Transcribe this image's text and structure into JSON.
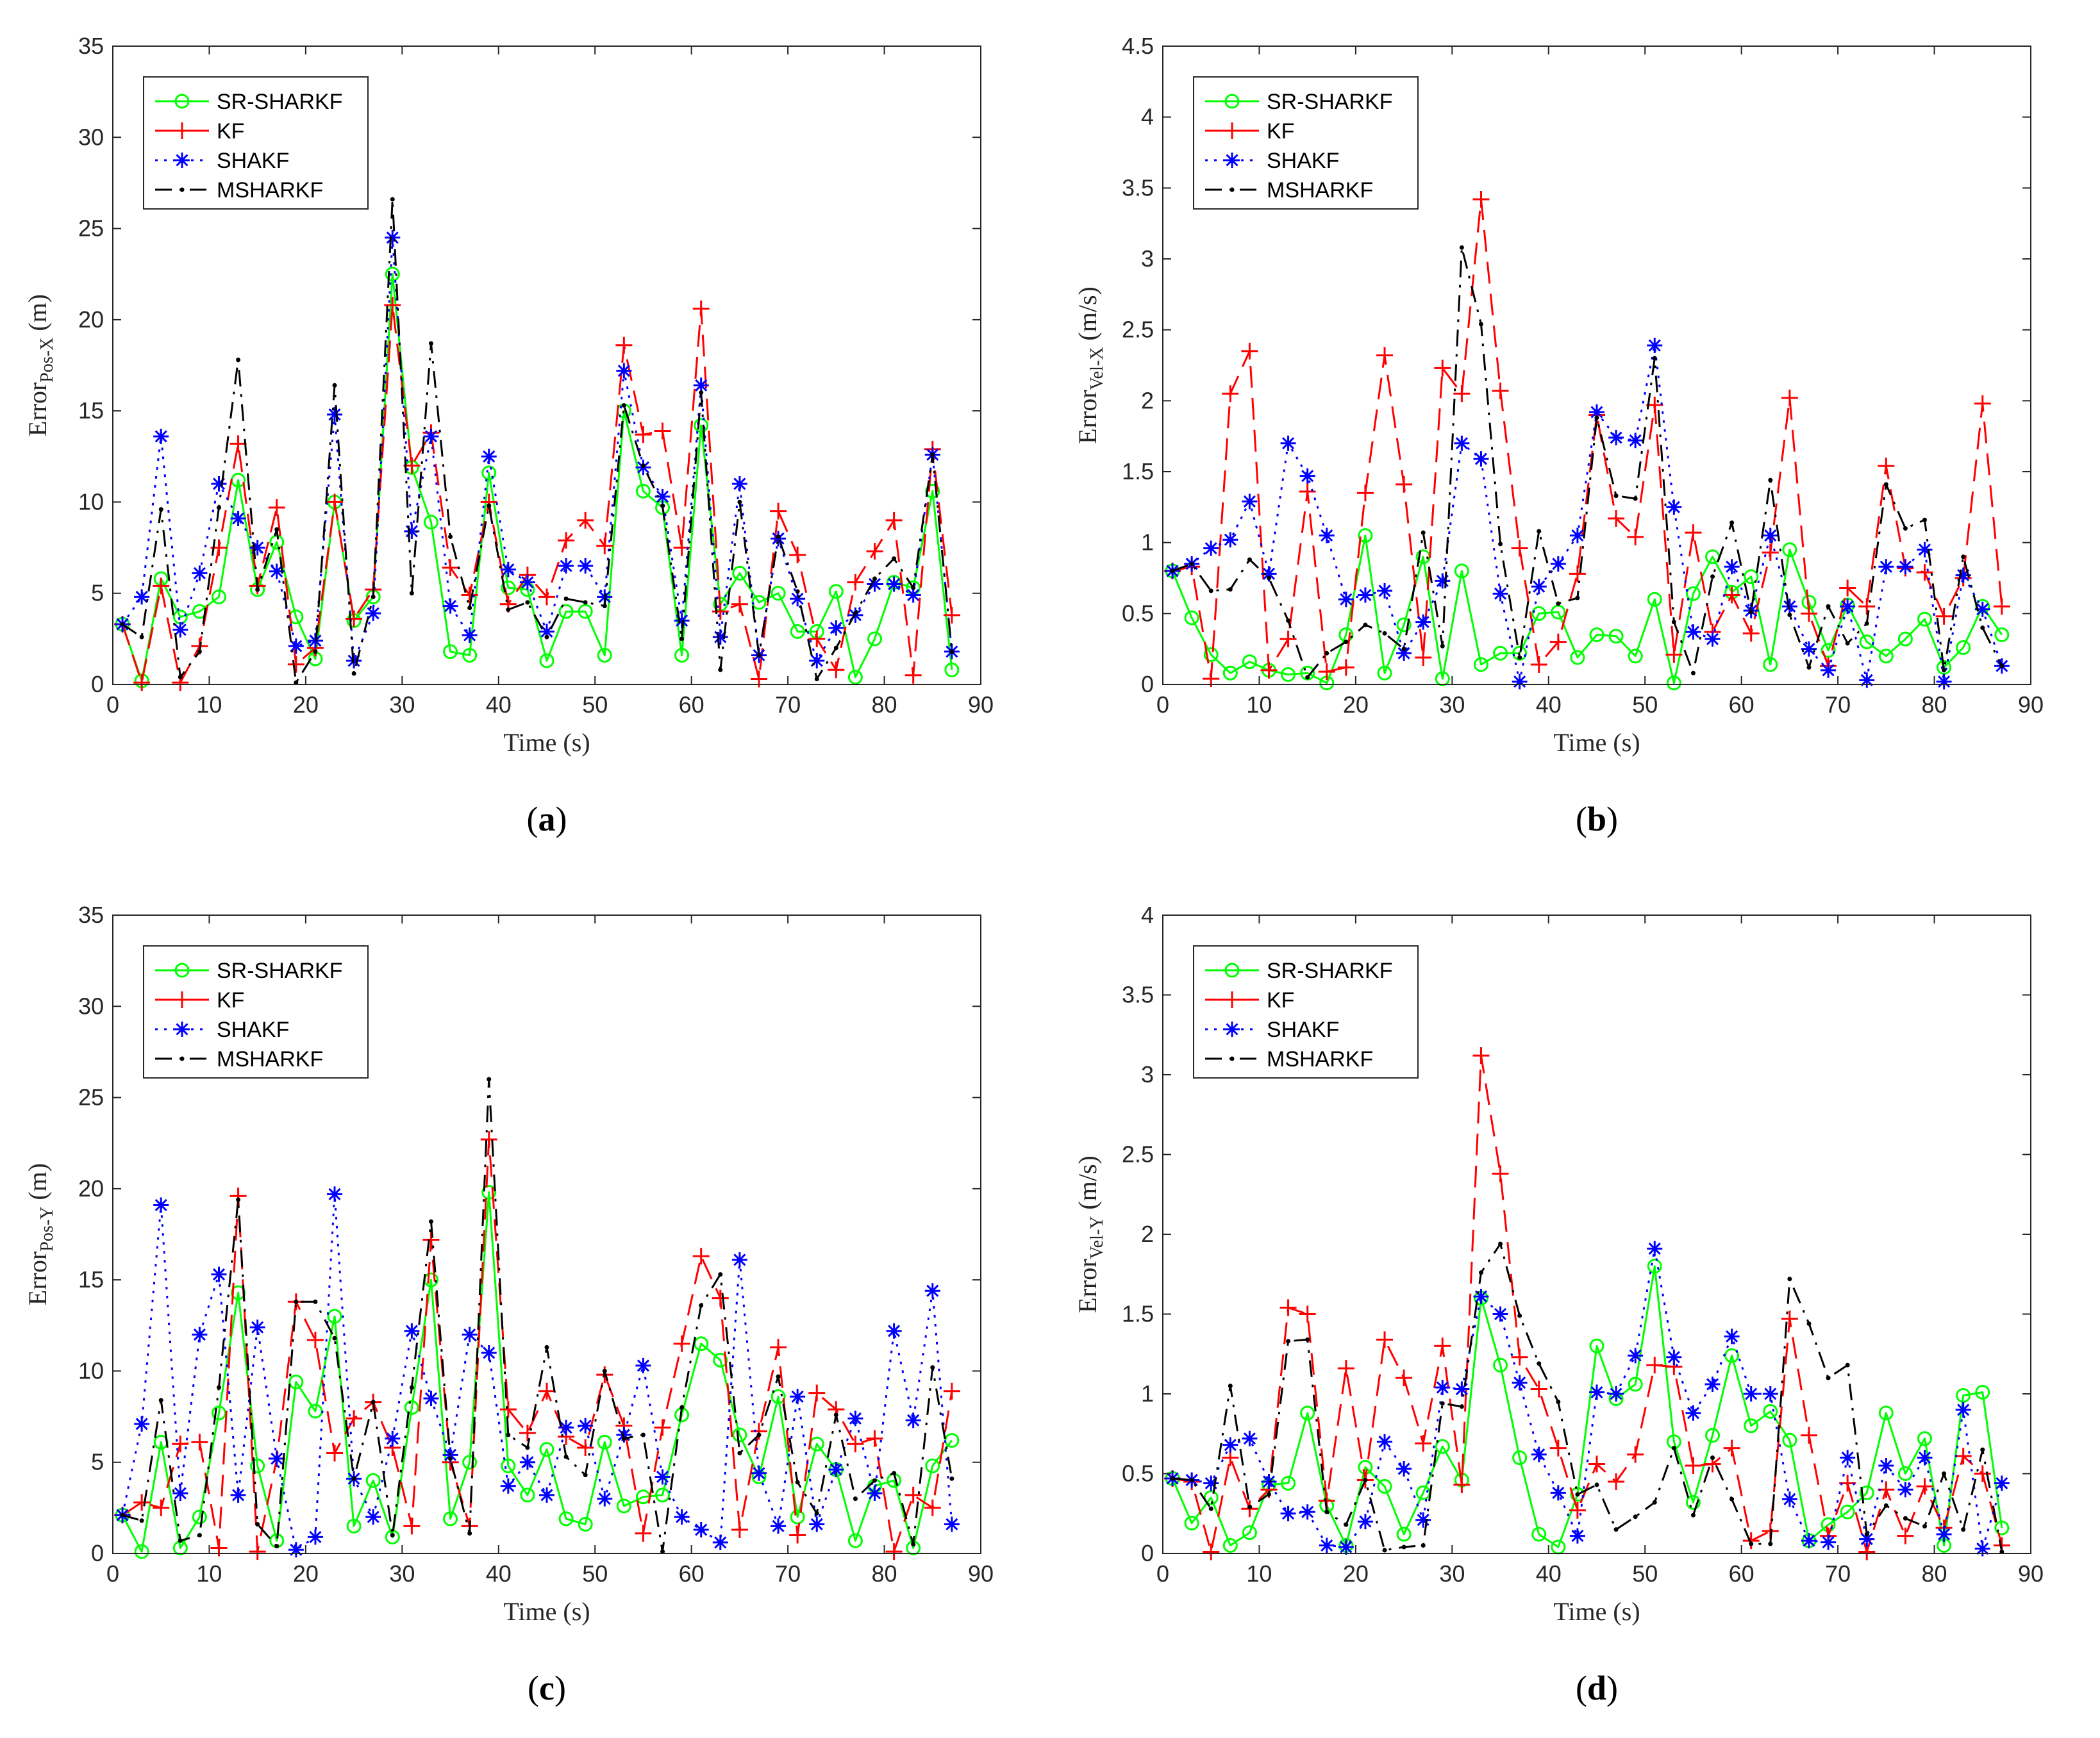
{
  "series_styles": [
    {
      "name": "SR-SHARKF",
      "color": "#00ff00",
      "dash": "",
      "marker": "circle"
    },
    {
      "name": "KF",
      "color": "#ff0000",
      "dash": "34,16",
      "marker": "plus"
    },
    {
      "name": "SHAKF",
      "color": "#0000ff",
      "dash": "4,10",
      "marker": "star"
    },
    {
      "name": "MSHARKF",
      "color": "#000000",
      "dash": "26,12,4,12",
      "marker": "dot"
    }
  ],
  "chart_data": [
    {
      "type": "line",
      "caption": "a",
      "xlabel": "Time (s)",
      "ylabel_main": "Error",
      "ylabel_sub": "Pos-X",
      "ylabel_unit": " (m)",
      "xlim": [
        0,
        90
      ],
      "ylim": [
        0,
        35
      ],
      "xticks": [
        0,
        10,
        20,
        30,
        40,
        50,
        60,
        70,
        80,
        90
      ],
      "yticks": [
        0,
        5,
        10,
        15,
        20,
        25,
        30,
        35
      ],
      "ytick_labels": [
        "0",
        "5",
        "10",
        "15",
        "20",
        "25",
        "30",
        "35"
      ],
      "legend_position": "top-left",
      "x": [
        1,
        3,
        5,
        7,
        9,
        11,
        13,
        15,
        17,
        19,
        21,
        23,
        25,
        27,
        29,
        31,
        33,
        35,
        37,
        39,
        41,
        43,
        45,
        47,
        49,
        51,
        53,
        55,
        57,
        59,
        61,
        63,
        65,
        67,
        69,
        71,
        73,
        75,
        77,
        79,
        81,
        83,
        85,
        87
      ],
      "series": [
        {
          "name": "SR-SHARKF",
          "values": [
            3.3,
            0.2,
            5.8,
            3.7,
            4.0,
            4.8,
            11.2,
            5.2,
            7.8,
            3.7,
            1.4,
            10.0,
            3.5,
            4.8,
            22.5,
            11.9,
            8.9,
            1.8,
            1.6,
            11.6,
            5.3,
            5.2,
            1.3,
            4.0,
            4.0,
            1.6,
            15.0,
            10.6,
            9.7,
            1.6,
            14.2,
            4.4,
            6.1,
            4.5,
            5.0,
            2.9,
            2.9,
            5.1,
            0.4,
            2.5,
            5.6,
            5.3,
            10.6,
            0.8
          ]
        },
        {
          "name": "KF",
          "values": [
            3.3,
            0.1,
            5.4,
            0.1,
            2.1,
            7.5,
            13.2,
            5.4,
            9.7,
            1.1,
            2.0,
            10.0,
            3.6,
            5.2,
            20.8,
            12.0,
            13.8,
            6.4,
            4.9,
            10.0,
            4.4,
            6.0,
            4.8,
            7.9,
            9.0,
            7.6,
            18.6,
            13.7,
            13.9,
            7.5,
            20.6,
            4.0,
            4.4,
            0.3,
            9.5,
            7.1,
            2.5,
            0.8,
            5.6,
            7.3,
            9.0,
            0.5,
            12.9,
            3.8
          ]
        },
        {
          "name": "SHAKF",
          "values": [
            3.3,
            4.8,
            13.6,
            3.0,
            6.1,
            11.0,
            9.1,
            7.5,
            6.2,
            2.1,
            2.4,
            14.8,
            1.3,
            3.9,
            24.5,
            8.4,
            13.6,
            4.3,
            2.7,
            12.5,
            6.3,
            5.6,
            2.9,
            6.5,
            6.5,
            4.8,
            17.2,
            11.9,
            10.3,
            3.5,
            16.4,
            2.6,
            11.0,
            1.6,
            8.0,
            4.7,
            1.3,
            3.1,
            3.8,
            5.5,
            5.5,
            4.9,
            12.6,
            1.8
          ]
        },
        {
          "name": "MSHARKF",
          "values": [
            3.3,
            2.6,
            9.6,
            0.4,
            1.8,
            9.7,
            17.8,
            5.2,
            8.5,
            0.1,
            1.8,
            16.4,
            0.6,
            4.8,
            26.6,
            5.0,
            18.7,
            8.1,
            4.2,
            9.8,
            4.1,
            4.5,
            2.6,
            4.7,
            4.5,
            4.3,
            15.3,
            12.0,
            9.8,
            2.5,
            16.0,
            0.8,
            10.0,
            1.6,
            8.1,
            5.1,
            0.3,
            2.0,
            3.9,
            5.8,
            6.9,
            5.3,
            12.6,
            1.8
          ]
        }
      ]
    },
    {
      "type": "line",
      "caption": "b",
      "xlabel": "Time (s)",
      "ylabel_main": "Error",
      "ylabel_sub": "Vel-X",
      "ylabel_unit": " (m/s)",
      "xlim": [
        0,
        90
      ],
      "ylim": [
        0,
        4.5
      ],
      "xticks": [
        0,
        10,
        20,
        30,
        40,
        50,
        60,
        70,
        80,
        90
      ],
      "yticks": [
        0,
        0.5,
        1,
        1.5,
        2,
        2.5,
        3,
        3.5,
        4,
        4.5
      ],
      "ytick_labels": [
        "0",
        "0.5",
        "1",
        "1.5",
        "2",
        "2.5",
        "3",
        "3.5",
        "4",
        "4.5"
      ],
      "legend_position": "top-left",
      "x": [
        1,
        3,
        5,
        7,
        9,
        11,
        13,
        15,
        17,
        19,
        21,
        23,
        25,
        27,
        29,
        31,
        33,
        35,
        37,
        39,
        41,
        43,
        45,
        47,
        49,
        51,
        53,
        55,
        57,
        59,
        61,
        63,
        65,
        67,
        69,
        71,
        73,
        75,
        77,
        79,
        81,
        83,
        85,
        87
      ],
      "series": [
        {
          "name": "SR-SHARKF",
          "values": [
            0.8,
            0.47,
            0.21,
            0.08,
            0.16,
            0.1,
            0.07,
            0.08,
            0.01,
            0.35,
            1.05,
            0.08,
            0.42,
            0.9,
            0.04,
            0.8,
            0.14,
            0.22,
            0.22,
            0.5,
            0.51,
            0.19,
            0.35,
            0.34,
            0.2,
            0.6,
            0.01,
            0.64,
            0.9,
            0.65,
            0.76,
            0.14,
            0.95,
            0.58,
            0.24,
            0.56,
            0.3,
            0.2,
            0.32,
            0.46,
            0.12,
            0.26,
            0.55,
            0.35
          ]
        },
        {
          "name": "KF",
          "values": [
            0.8,
            0.83,
            0.04,
            2.05,
            2.35,
            0.1,
            0.32,
            1.36,
            0.09,
            0.12,
            1.35,
            2.32,
            1.41,
            0.19,
            2.23,
            2.05,
            3.42,
            2.07,
            0.96,
            0.14,
            0.3,
            0.78,
            1.9,
            1.17,
            1.04,
            1.97,
            0.21,
            1.07,
            0.37,
            0.63,
            0.36,
            0.93,
            2.02,
            0.5,
            0.13,
            0.68,
            0.55,
            1.54,
            0.82,
            0.79,
            0.48,
            0.75,
            1.98,
            0.55
          ]
        },
        {
          "name": "SHAKF",
          "values": [
            0.8,
            0.85,
            0.96,
            1.02,
            1.29,
            0.78,
            1.7,
            1.47,
            1.05,
            0.6,
            0.63,
            0.66,
            0.22,
            0.44,
            0.73,
            1.7,
            1.59,
            0.64,
            0.02,
            0.69,
            0.85,
            1.05,
            1.92,
            1.74,
            1.72,
            2.39,
            1.25,
            0.37,
            0.32,
            0.83,
            0.52,
            1.05,
            0.55,
            0.25,
            0.1,
            0.55,
            0.03,
            0.83,
            0.83,
            0.95,
            0.02,
            0.77,
            0.53,
            0.13
          ]
        },
        {
          "name": "MSHARKF",
          "values": [
            0.8,
            0.85,
            0.66,
            0.67,
            0.88,
            0.75,
            0.45,
            0.05,
            0.22,
            0.3,
            0.42,
            0.36,
            0.25,
            1.07,
            0.27,
            3.08,
            2.54,
            0.99,
            0.19,
            1.08,
            0.57,
            0.61,
            1.88,
            1.33,
            1.31,
            2.3,
            0.44,
            0.08,
            0.76,
            1.14,
            0.51,
            1.44,
            0.49,
            0.12,
            0.55,
            0.29,
            0.43,
            1.41,
            1.1,
            1.16,
            0.1,
            0.9,
            0.4,
            0.13
          ]
        }
      ]
    },
    {
      "type": "line",
      "caption": "c",
      "xlabel": "Time (s)",
      "ylabel_main": "Error",
      "ylabel_sub": "Pos-Y",
      "ylabel_unit": " (m)",
      "xlim": [
        0,
        90
      ],
      "ylim": [
        0,
        35
      ],
      "xticks": [
        0,
        10,
        20,
        30,
        40,
        50,
        60,
        70,
        80,
        90
      ],
      "yticks": [
        0,
        5,
        10,
        15,
        20,
        25,
        30,
        35
      ],
      "ytick_labels": [
        "0",
        "5",
        "10",
        "15",
        "20",
        "25",
        "30",
        "35"
      ],
      "legend_position": "top-left",
      "x": [
        1,
        3,
        5,
        7,
        9,
        11,
        13,
        15,
        17,
        19,
        21,
        23,
        25,
        27,
        29,
        31,
        33,
        35,
        37,
        39,
        41,
        43,
        45,
        47,
        49,
        51,
        53,
        55,
        57,
        59,
        61,
        63,
        65,
        67,
        69,
        71,
        73,
        75,
        77,
        79,
        81,
        83,
        85,
        87
      ],
      "series": [
        {
          "name": "SR-SHARKF",
          "values": [
            2.1,
            0.1,
            6.1,
            0.3,
            2.0,
            7.7,
            14.3,
            4.8,
            0.7,
            9.4,
            7.8,
            13.0,
            1.5,
            4.0,
            0.9,
            8.0,
            15.0,
            1.9,
            5.0,
            19.8,
            4.8,
            3.2,
            5.7,
            1.9,
            1.6,
            6.1,
            2.6,
            3.1,
            3.2,
            7.6,
            11.5,
            10.6,
            6.5,
            4.2,
            8.6,
            2.0,
            6.0,
            4.6,
            0.7,
            3.7,
            4.0,
            0.3,
            4.8,
            6.2
          ]
        },
        {
          "name": "KF",
          "values": [
            2.1,
            2.8,
            2.5,
            6.0,
            6.1,
            0.3,
            19.6,
            0.1,
            5.2,
            13.8,
            11.7,
            5.5,
            7.4,
            8.3,
            5.8,
            1.5,
            17.2,
            5.0,
            1.5,
            22.7,
            7.9,
            6.6,
            8.9,
            6.4,
            5.8,
            9.8,
            7.0,
            1.1,
            6.9,
            11.5,
            16.3,
            14.0,
            1.3,
            6.7,
            11.3,
            1.0,
            8.8,
            7.9,
            6.0,
            6.3,
            0.1,
            3.2,
            2.5,
            8.9
          ]
        },
        {
          "name": "SHAKF",
          "values": [
            2.1,
            7.1,
            19.1,
            3.3,
            12.0,
            15.3,
            3.2,
            12.4,
            5.2,
            0.2,
            0.9,
            19.7,
            4.1,
            2.0,
            6.3,
            12.2,
            8.5,
            5.4,
            12.0,
            11.0,
            3.7,
            5.0,
            3.2,
            6.9,
            7.0,
            3.0,
            6.5,
            10.3,
            4.2,
            2.0,
            1.3,
            0.6,
            16.1,
            4.4,
            1.5,
            8.6,
            1.6,
            4.6,
            7.4,
            3.3,
            12.2,
            7.3,
            14.4,
            1.6
          ]
        },
        {
          "name": "MSHARKF",
          "values": [
            2.1,
            1.8,
            8.4,
            0.7,
            1.0,
            9.1,
            19.4,
            1.6,
            0.4,
            13.8,
            13.8,
            11.8,
            4.1,
            8.3,
            1.0,
            9.1,
            18.2,
            5.2,
            1.1,
            26.0,
            6.5,
            5.8,
            11.3,
            5.3,
            4.3,
            10.0,
            6.3,
            6.5,
            0.1,
            8.0,
            13.6,
            15.3,
            5.5,
            6.5,
            9.7,
            3.9,
            2.2,
            7.6,
            3.0,
            4.0,
            4.4,
            0.5,
            10.2,
            4.1
          ]
        }
      ]
    },
    {
      "type": "line",
      "caption": "d",
      "xlabel": "Time (s)",
      "ylabel_main": "Error",
      "ylabel_sub": "Vel-Y",
      "ylabel_unit": " (m/s)",
      "xlim": [
        0,
        90
      ],
      "ylim": [
        0,
        4
      ],
      "xticks": [
        0,
        10,
        20,
        30,
        40,
        50,
        60,
        70,
        80,
        90
      ],
      "yticks": [
        0,
        0.5,
        1,
        1.5,
        2,
        2.5,
        3,
        3.5,
        4
      ],
      "ytick_labels": [
        "0",
        "0.5",
        "1",
        "1.5",
        "2",
        "2.5",
        "3",
        "3.5",
        "4"
      ],
      "legend_position": "top-left",
      "x": [
        1,
        3,
        5,
        7,
        9,
        11,
        13,
        15,
        17,
        19,
        21,
        23,
        25,
        27,
        29,
        31,
        33,
        35,
        37,
        39,
        41,
        43,
        45,
        47,
        49,
        51,
        53,
        55,
        57,
        59,
        61,
        63,
        65,
        67,
        69,
        71,
        73,
        75,
        77,
        79,
        81,
        83,
        85,
        87
      ],
      "series": [
        {
          "name": "SR-SHARKF",
          "values": [
            0.47,
            0.19,
            0.35,
            0.05,
            0.13,
            0.43,
            0.44,
            0.88,
            0.3,
            0.05,
            0.54,
            0.42,
            0.12,
            0.38,
            0.67,
            0.46,
            1.6,
            1.18,
            0.6,
            0.12,
            0.04,
            0.37,
            1.3,
            0.97,
            1.06,
            1.8,
            0.7,
            0.32,
            0.74,
            1.24,
            0.8,
            0.89,
            0.71,
            0.08,
            0.18,
            0.26,
            0.38,
            0.88,
            0.5,
            0.72,
            0.05,
            0.99,
            1.01,
            0.16
          ]
        },
        {
          "name": "KF",
          "values": [
            0.47,
            0.45,
            0.01,
            0.6,
            0.28,
            0.4,
            1.54,
            1.5,
            0.33,
            1.16,
            0.46,
            1.34,
            1.1,
            0.69,
            1.3,
            0.43,
            3.12,
            2.38,
            1.23,
            1.03,
            0.66,
            0.27,
            0.56,
            0.45,
            0.62,
            1.18,
            1.17,
            0.55,
            0.56,
            0.66,
            0.08,
            0.14,
            1.47,
            0.74,
            0.11,
            0.44,
            0.01,
            0.4,
            0.11,
            0.42,
            0.16,
            0.61,
            0.5,
            0.05
          ]
        },
        {
          "name": "SHAKF",
          "values": [
            0.47,
            0.46,
            0.44,
            0.68,
            0.72,
            0.45,
            0.25,
            0.26,
            0.05,
            0.04,
            0.2,
            0.7,
            0.53,
            0.21,
            1.04,
            1.03,
            1.61,
            1.5,
            1.07,
            0.62,
            0.38,
            0.11,
            1.01,
            1.0,
            1.24,
            1.91,
            1.23,
            0.88,
            1.06,
            1.36,
            1.0,
            1.0,
            0.34,
            0.08,
            0.07,
            0.6,
            0.09,
            0.55,
            0.4,
            0.6,
            0.12,
            0.9,
            0.03,
            0.44
          ]
        },
        {
          "name": "MSHARKF",
          "values": [
            0.47,
            0.46,
            0.28,
            1.05,
            0.29,
            0.37,
            1.33,
            1.34,
            0.26,
            0.18,
            0.46,
            0.02,
            0.04,
            0.05,
            0.94,
            0.92,
            1.76,
            1.94,
            1.49,
            1.19,
            0.95,
            0.37,
            0.43,
            0.15,
            0.23,
            0.32,
            0.66,
            0.24,
            0.6,
            0.34,
            0.06,
            0.06,
            1.72,
            1.44,
            1.1,
            1.18,
            0.12,
            0.3,
            0.22,
            0.17,
            0.5,
            0.15,
            0.65,
            0.01
          ]
        }
      ]
    }
  ]
}
